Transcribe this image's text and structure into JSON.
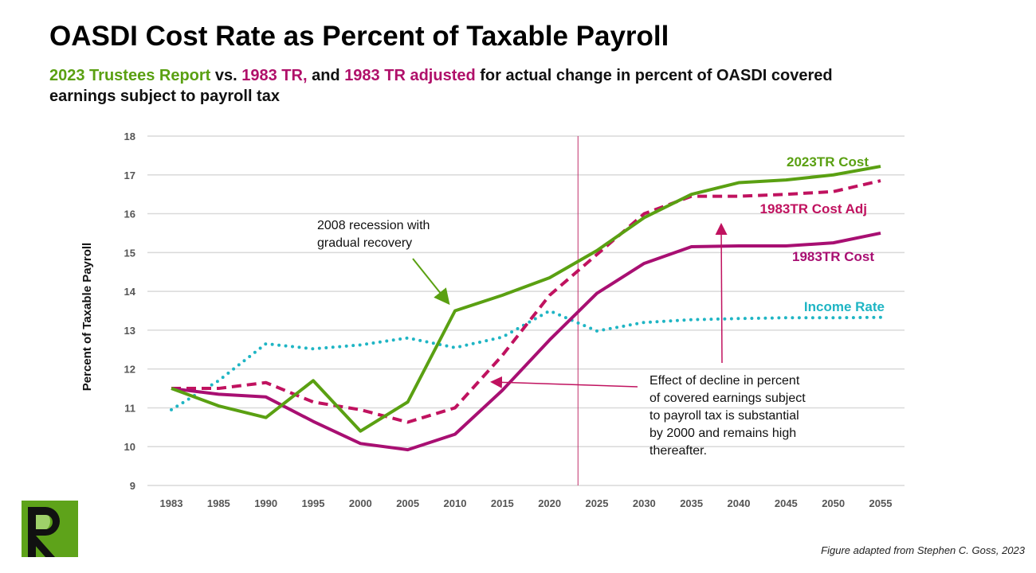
{
  "title": "OASDI Cost Rate as Percent of Taxable Payroll",
  "subtitle": {
    "part1": "2023 Trustees Report",
    "part2": " vs. ",
    "part3": "1983 TR,",
    "part4": " and ",
    "part5": "1983 TR adjusted",
    "part6": " for actual change in percent of OASDI covered earnings subject to payroll tax"
  },
  "credit": "Figure adapted from Stephen C. Goss, 2023",
  "logo_text": "R",
  "colors": {
    "green": "#5aa012",
    "magenta": "#b0106a",
    "teal": "#1fb5c4",
    "grid": "#d9d9d9"
  },
  "chart_data": {
    "type": "line",
    "ylabel": "Percent of Taxable Payroll",
    "ylim": [
      9,
      18
    ],
    "yticks": [
      9,
      10,
      11,
      12,
      13,
      14,
      15,
      16,
      17,
      18
    ],
    "categories": [
      "1983",
      "1985",
      "1990",
      "1995",
      "2000",
      "2005",
      "2010",
      "2015",
      "2020",
      "2025",
      "2030",
      "2035",
      "2040",
      "2045",
      "2050",
      "2055"
    ],
    "grid": true,
    "vertical_marker_year": 2023,
    "series": [
      {
        "name": "2023TR Cost",
        "style": "solid",
        "color": "#5aa012",
        "values": [
          11.5,
          11.05,
          10.75,
          11.7,
          10.4,
          11.15,
          13.5,
          13.9,
          14.35,
          15.05,
          15.9,
          16.5,
          16.8,
          16.87,
          17.0,
          17.22
        ]
      },
      {
        "name": "1983TR Cost Adj",
        "style": "dashed",
        "color": "#c0125f",
        "values": [
          11.5,
          11.5,
          11.65,
          11.15,
          10.95,
          10.63,
          11.0,
          12.35,
          13.9,
          14.95,
          16.0,
          16.45,
          16.45,
          16.5,
          16.57,
          16.85
        ]
      },
      {
        "name": "1983TR Cost",
        "style": "solid",
        "color": "#a80f72",
        "values": [
          11.5,
          11.35,
          11.28,
          10.65,
          10.08,
          9.92,
          10.32,
          11.45,
          12.75,
          13.95,
          14.72,
          15.15,
          15.17,
          15.17,
          15.25,
          15.5
        ]
      },
      {
        "name": "Income Rate",
        "style": "dotted",
        "color": "#1fb5c4",
        "values": [
          10.95,
          11.7,
          12.65,
          12.52,
          12.62,
          12.8,
          12.55,
          12.82,
          13.5,
          12.98,
          13.2,
          13.27,
          13.3,
          13.32,
          13.32,
          13.33
        ]
      }
    ],
    "annotations": [
      {
        "text_lines": [
          "2008 recession with",
          "gradual recovery"
        ]
      },
      {
        "text_lines": [
          "Effect of decline in percent",
          "of covered earnings subject",
          "to payroll tax is substantial",
          "by 2000 and remains high",
          "thereafter."
        ]
      }
    ]
  }
}
